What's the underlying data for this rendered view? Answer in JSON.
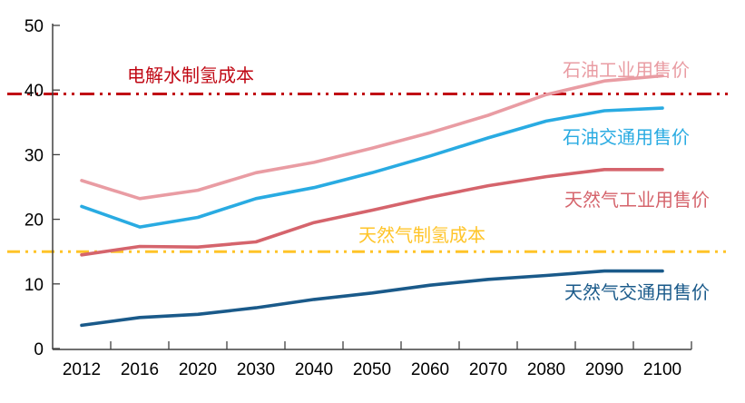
{
  "chart_data": {
    "type": "line",
    "title": "",
    "xlabel": "",
    "ylabel": "",
    "grid": false,
    "legend_position": "inline-labels",
    "ylim": [
      0,
      50
    ],
    "yticks": [
      0,
      10,
      20,
      30,
      40,
      50
    ],
    "categories": [
      "2012",
      "2016",
      "2020",
      "2030",
      "2040",
      "2050",
      "2060",
      "2070",
      "2080",
      "2090",
      "2100"
    ],
    "series": [
      {
        "name": "石油工业用售价",
        "color": "#E99CA3",
        "values": [
          26.0,
          23.2,
          24.5,
          27.2,
          28.8,
          31.0,
          33.4,
          36.1,
          39.3,
          41.4,
          42.2
        ]
      },
      {
        "name": "石油交通用售价",
        "color": "#29ABE2",
        "values": [
          22.0,
          18.8,
          20.3,
          23.2,
          24.9,
          27.2,
          29.8,
          32.6,
          35.2,
          36.8,
          37.2
        ]
      },
      {
        "name": "天然气工业用售价",
        "color": "#D5646C",
        "values": [
          14.5,
          15.8,
          15.7,
          16.5,
          19.5,
          21.4,
          23.4,
          25.2,
          26.6,
          27.7,
          27.7
        ]
      },
      {
        "name": "天然气交通用售价",
        "color": "#1A5A8A",
        "values": [
          3.6,
          4.8,
          5.3,
          6.3,
          7.6,
          8.6,
          9.8,
          10.7,
          11.3,
          12.0,
          12.0
        ]
      }
    ],
    "ref_lines": [
      {
        "name": "电解水制氢成本",
        "color": "#C00814",
        "value": 39.4,
        "style": "dash-dot-dot"
      },
      {
        "name": "天然气制氢成本",
        "color": "#FFC428",
        "value": 15.0,
        "style": "dash-dot-dot"
      }
    ]
  }
}
